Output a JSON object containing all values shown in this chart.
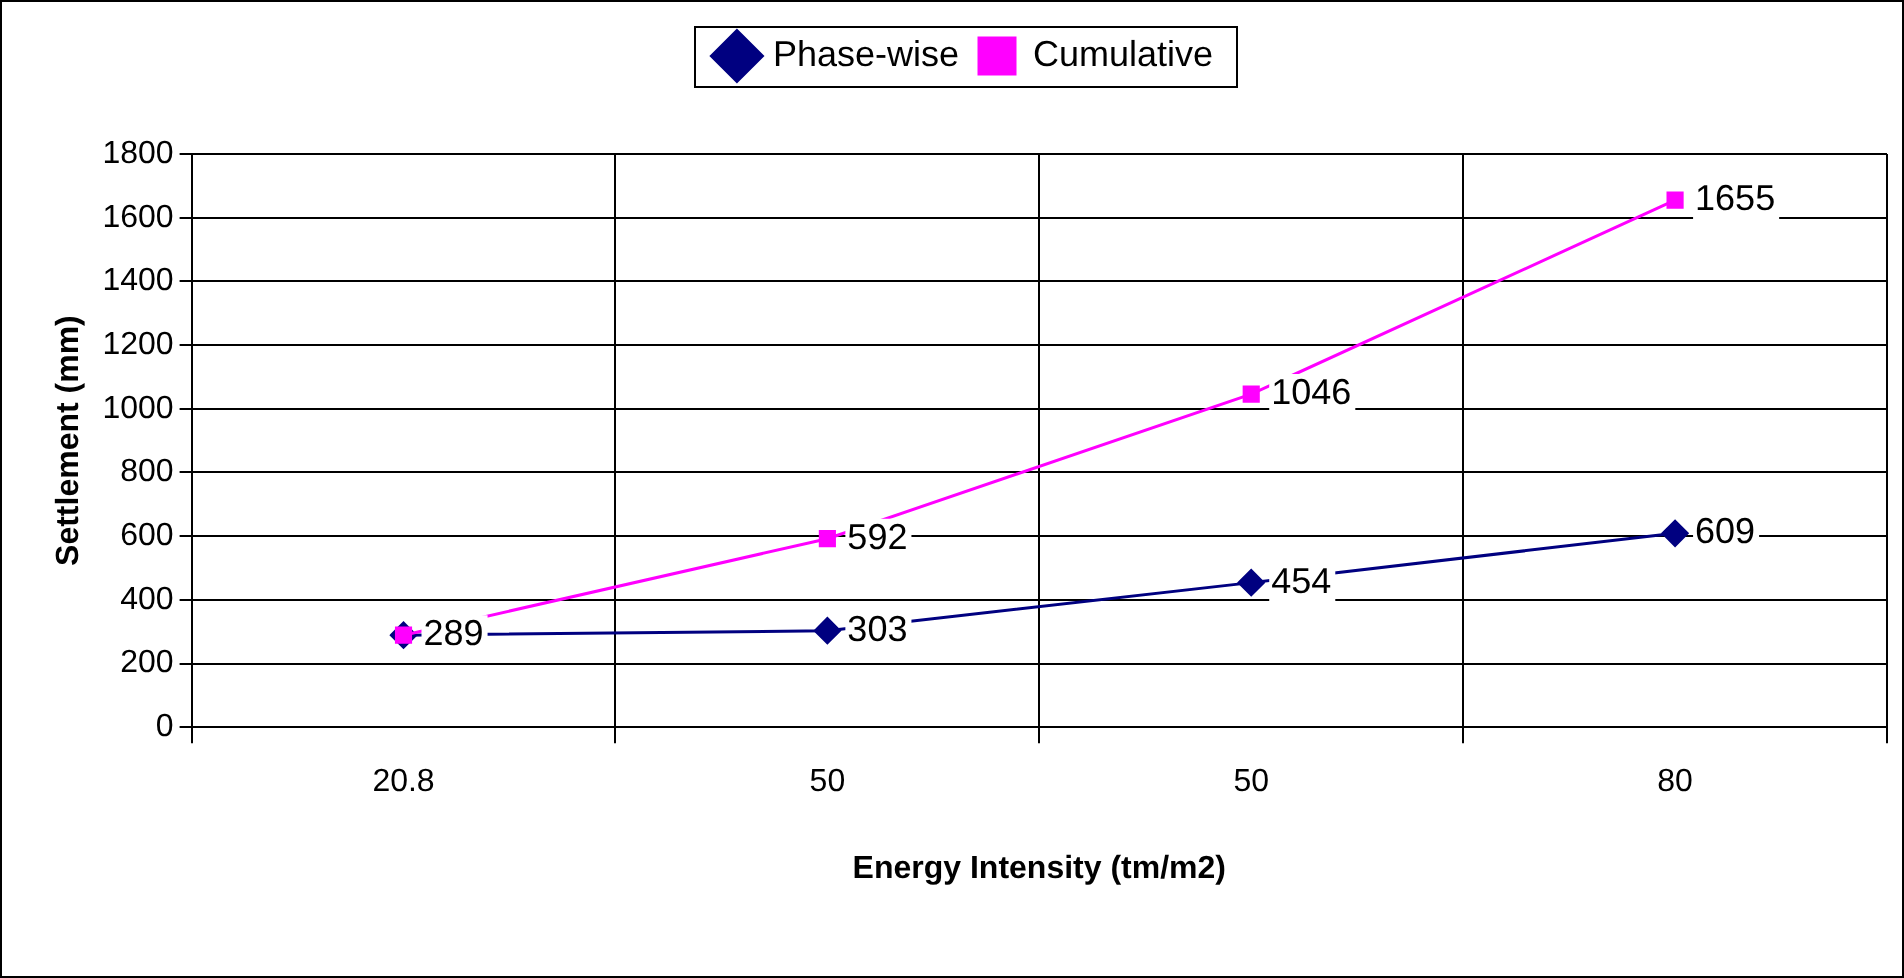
{
  "chart_data": {
    "type": "line",
    "xlabel": "Energy Intensity (tm/m2)",
    "ylabel": "Settlement (mm)",
    "categories": [
      "20.8",
      "50",
      "50",
      "80"
    ],
    "series": [
      {
        "name": "Phase-wise",
        "color": "#000080",
        "marker": "diamond",
        "values": [
          289,
          303,
          454,
          609
        ],
        "value_labels": [
          "289",
          "303",
          "454",
          "609"
        ]
      },
      {
        "name": "Cumulative",
        "color": "#ff00ff",
        "marker": "square",
        "values": [
          289,
          592,
          1046,
          1655
        ],
        "value_labels": [
          null,
          "592",
          "1046",
          "1655"
        ]
      }
    ],
    "ylim": [
      0,
      1800
    ],
    "yticks": [
      0,
      200,
      400,
      600,
      800,
      1000,
      1200,
      1400,
      1600,
      1800
    ],
    "grid": true,
    "legend": "top"
  }
}
